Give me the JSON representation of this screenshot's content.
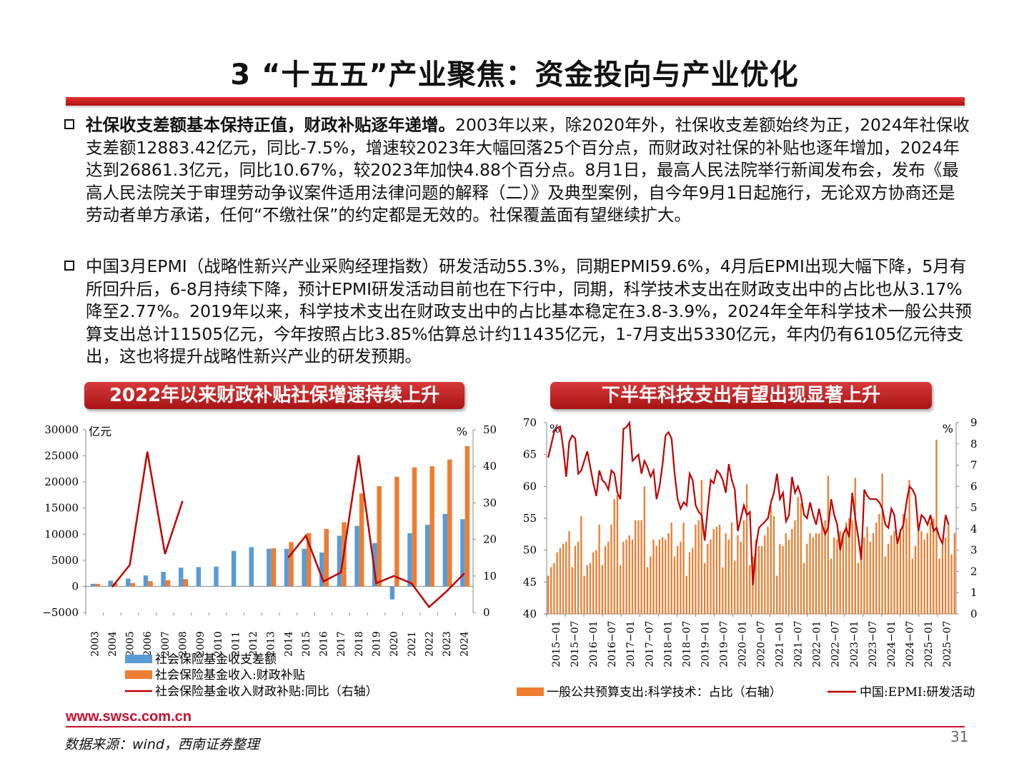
{
  "slide": {
    "title": "3 “十五五”产业聚焦：资金投向与产业优化",
    "para1_bold": "社保收支差额基本保持正值，财政补贴逐年递增。",
    "para1_text": "2003年以来，除2020年外，社保收支差额始终为正，2024年社保收支差额12883.42亿元，同比-7.5%，增速较2023年大幅回落25个百分点，而财政对社保的补贴也逐年增加，2024年达到26861.3亿元，同比10.67%，较2023年加快4.88个百分点。8月1日，最高人民法院举行新闻发布会，发布《最高人民法院关于审理劳动争议案件适用法律问题的解释（二）》及典型案例，自今年9月1日起施行，无论双方协商还是劳动者单方承诺，任何“不缴社保”的约定都是无效的。社保覆盖面有望继续扩大。",
    "para2_text": "中国3月EPMI（战略性新兴产业采购经理指数）研发活动55.3%，同期EPMI59.6%，4月后EPMI出现大幅下降，5月有所回升后，6-8月持续下降，预计EPMI研发活动目前也在下行中，同期，科学技术支出在财政支出中的占比也从3.17%降至2.77%。2019年以来，科学技术支出在财政支出中的占比基本稳定在3.8-3.9%，2024年全年科学技术一般公共预算支出总计11505亿元，今年按照占比3.85%估算总计约11435亿元，1-7月支出5330亿元，年内仍有6105亿元待支出，这也将提升战略性新兴产业的研发预期。",
    "banner_left": "2022年以来财政补贴社保增速持续上升",
    "banner_right": "下半年科技支出有望出现显著上升",
    "footer_url": "www.swsc.com.cn",
    "source": "数据来源：wind，西南证券整理",
    "page_number": "31"
  },
  "chart_data": [
    {
      "type": "bar",
      "left_unit": "亿元",
      "right_unit": "%",
      "ylim": [
        -5000,
        30000
      ],
      "y2lim": [
        0,
        50
      ],
      "yticks": [
        "30000",
        "25000",
        "20000",
        "15000",
        "10000",
        "5000",
        "0",
        "−5000"
      ],
      "y2ticks": [
        "50",
        "40",
        "30",
        "20",
        "10",
        "0"
      ],
      "categories": [
        "2003",
        "2004",
        "2005",
        "2006",
        "2007",
        "2008",
        "2009",
        "2010",
        "2011",
        "2012",
        "2013",
        "2014",
        "2015",
        "2016",
        "2017",
        "2018",
        "2019",
        "2020",
        "2021",
        "2022",
        "2023",
        "2024"
      ],
      "series": [
        {
          "name": "社会保险基金收支差额",
          "kind": "bar",
          "color": "#5b9bd5",
          "values": [
            500,
            1100,
            1500,
            2100,
            2800,
            3600,
            3700,
            3800,
            6800,
            7500,
            7200,
            7200,
            7200,
            6500,
            9700,
            11600,
            8300,
            -2500,
            10200,
            11800,
            13900,
            12883
          ]
        },
        {
          "name": "社会保险基金收入:财政补贴",
          "kind": "bar",
          "color": "#ed7d31",
          "values": [
            500,
            600,
            650,
            1000,
            1200,
            1400,
            null,
            null,
            null,
            null,
            7300,
            8500,
            10200,
            11000,
            12300,
            17800,
            19200,
            21000,
            22800,
            23000,
            24300,
            26861
          ]
        },
        {
          "name": "社会保险基金收入财政补贴:同比（右轴）",
          "kind": "line",
          "color": "#c00000",
          "values": [
            null,
            7,
            13,
            44,
            16,
            30.5,
            null,
            null,
            null,
            null,
            null,
            15,
            21,
            8.5,
            11,
            43,
            8,
            10,
            8,
            1.5,
            5.8,
            10.7
          ]
        }
      ]
    },
    {
      "type": "line",
      "left_unit": "%",
      "right_unit": "%",
      "ylim": [
        40,
        70
      ],
      "y2lim": [
        0,
        9
      ],
      "yticks": [
        "70",
        "65",
        "60",
        "55",
        "50",
        "45",
        "40"
      ],
      "y2ticks": [
        "9",
        "8",
        "7",
        "6",
        "5",
        "4",
        "3",
        "2",
        "1",
        "0"
      ],
      "x_tick_labels": [
        "2015−01",
        "2015−07",
        "2016−01",
        "2016−07",
        "2017−01",
        "2017−07",
        "2018−01",
        "2018−07",
        "2019−01",
        "2019−07",
        "2020−01",
        "2020−07",
        "2021−01",
        "2021−07",
        "2022−01",
        "2022−07",
        "2023−01",
        "2023−07",
        "2024−01",
        "2024−07",
        "2025−01",
        "2025−07"
      ],
      "series": [
        {
          "name": "一般公共预算支出:科学技术：占比（右轴）",
          "kind": "bar",
          "color": "#ed7d31",
          "axis": "right",
          "values": [
            1.8,
            2.2,
            2.4,
            2.9,
            3.1,
            3.3,
            3.4,
            3.9,
            2.2,
            3.2,
            3.4,
            4.6,
            1.8,
            2.3,
            2.4,
            2.9,
            3.0,
            4.2,
            2.3,
            3.2,
            3.4,
            4.2,
            5.4,
            5.6,
            2.3,
            3.4,
            3.5,
            3.7,
            3.5,
            4.4,
            4.4,
            4.4,
            6.0,
            2.2,
            2.7,
            3.5,
            3.2,
            3.5,
            3.6,
            3.5,
            3.8,
            4.3,
            2.7,
            3.2,
            3.4,
            4.3,
            1.8,
            2.9,
            3.1,
            4.2,
            4.4,
            6.3,
            2.4,
            3.3,
            3.5,
            4.0,
            4.1,
            4.2,
            2.2,
            3.8,
            3.5,
            4.3,
            2.5,
            3.7,
            3.4,
            4.4,
            6.1,
            2.3,
            2.7,
            3.5,
            3.2,
            3.2,
            3.7,
            4.1,
            5.1,
            4.6,
            1.8,
            3.3,
            3.2,
            3.8,
            3.5,
            4.0,
            4.4,
            5.5,
            5.2,
            2.4,
            3.3,
            3.8,
            3.6,
            3.8,
            3.8,
            4.3,
            4.4,
            6.5,
            2.6,
            3.6,
            3.5,
            3.9,
            3.8,
            4.3,
            4.5,
            4.4,
            6.4,
            2.4,
            3.2,
            3.6,
            4.1,
            3.4,
            3.8,
            4.3,
            4.7,
            6.6,
            2.7,
            3.3,
            3.7,
            3.9,
            3.5,
            4.0,
            4.7,
            4.5,
            6.3,
            2.6,
            3.2,
            3.9,
            3.9,
            3.5,
            3.8,
            4.3,
            4.5,
            8.2,
            2.6,
            3.2,
            3.6,
            4.2,
            2.8,
            3.8
          ]
        },
        {
          "name": "中国:EPMI:研发活动",
          "kind": "line",
          "color": "#c00000",
          "axis": "left",
          "values": [
            64.5,
            66.5,
            68.5,
            69.2,
            69.4,
            66.0,
            61.5,
            67.0,
            68.0,
            67.5,
            62.0,
            62.5,
            64.0,
            65.5,
            63.0,
            60.5,
            58.5,
            62.5,
            61.0,
            60.5,
            59.5,
            62.5,
            62.0,
            59.0,
            58.0,
            69.0,
            69.3,
            73.0,
            64.0,
            64.5,
            65.0,
            62.0,
            64.0,
            63.0,
            61.5,
            62.5,
            58.0,
            60.0,
            63.5,
            68.0,
            68.5,
            67.5,
            62.0,
            58.0,
            56.5,
            57.5,
            57.0,
            62.0,
            61.0,
            57.0,
            56.0,
            55.5,
            51.5,
            56.5,
            61.0,
            60.5,
            62.5,
            62.0,
            61.0,
            59.0,
            63.5,
            61.0,
            59.5,
            53.0,
            55.0,
            57.0,
            55.5,
            56.0,
            44.5,
            50.5,
            53.5,
            54.0,
            54.5,
            55.0,
            57.5,
            59.0,
            62.0,
            58.0,
            59.0,
            54.5,
            55.5,
            61.5,
            59.0,
            60.0,
            58.5,
            55.5,
            55.0,
            57.5,
            55.5,
            54.0,
            56.5,
            54.0,
            52.5,
            53.5,
            58.0,
            55.5,
            54.0,
            50.0,
            52.5,
            53.5,
            52.0,
            59.0,
            55.0,
            52.0,
            48.5,
            59.5,
            58.5,
            58.0,
            58.0,
            58.0,
            57.5,
            56.5,
            54.0,
            53.5,
            56.5,
            55.5,
            51.0,
            53.0,
            54.0,
            57.5,
            60.0,
            59.5,
            58.5,
            53.0,
            55.5,
            55.0,
            54.0,
            55.5,
            53.0,
            53.5,
            52.0,
            51.0,
            55.5,
            54.0
          ]
        }
      ]
    }
  ]
}
